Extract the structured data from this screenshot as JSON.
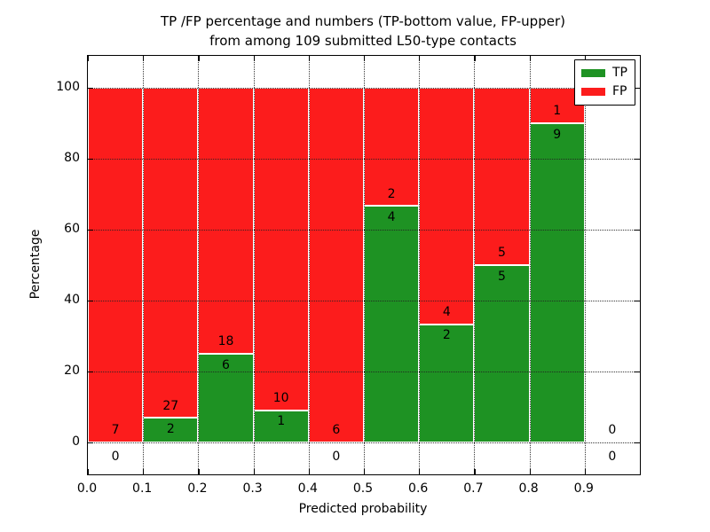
{
  "title": {
    "line1": "TP /FP percentage and numbers (TP-bottom value, FP-upper)",
    "line2": "from among 109 submitted L50-type contacts"
  },
  "axes": {
    "xlabel": "Predicted probability",
    "ylabel": "Percentage",
    "xtick_labels": [
      "0.0",
      "0.1",
      "0.2",
      "0.3",
      "0.4",
      "0.5",
      "0.6",
      "0.7",
      "0.8",
      "0.9"
    ],
    "ytick_labels": [
      "0",
      "20",
      "40",
      "60",
      "80",
      "100"
    ],
    "ytick_values": [
      0,
      20,
      40,
      60,
      80,
      100
    ],
    "grid": true
  },
  "legend": {
    "position": "upper right",
    "entries": [
      {
        "label": "TP",
        "color": "#1e9223"
      },
      {
        "label": "FP",
        "color": "#fc1c1c"
      }
    ]
  },
  "colors": {
    "tp": "#1e9223",
    "fp": "#fc1c1c",
    "grid": "#222222",
    "text": "#000000"
  },
  "chart_data": {
    "type": "bar",
    "stacked": true,
    "normalized_to": 100,
    "title": "TP /FP percentage and numbers (TP-bottom value, FP-upper) from among 109 submitted L50-type contacts",
    "xlabel": "Predicted probability",
    "ylabel": "Percentage",
    "xlim": [
      0.0,
      1.0
    ],
    "ylim": [
      -9,
      109
    ],
    "bin_width": 0.1,
    "bin_starts": [
      0.0,
      0.1,
      0.2,
      0.3,
      0.4,
      0.5,
      0.6,
      0.7,
      0.8,
      0.9
    ],
    "series": [
      {
        "name": "TP",
        "color": "#1e9223",
        "counts": [
          0,
          2,
          6,
          1,
          0,
          4,
          2,
          5,
          9,
          0
        ]
      },
      {
        "name": "FP",
        "color": "#fc1c1c",
        "counts": [
          7,
          27,
          18,
          10,
          6,
          2,
          4,
          5,
          1,
          0
        ]
      }
    ],
    "tp_percent": [
      0.0,
      6.9,
      25.0,
      9.1,
      0.0,
      66.7,
      33.3,
      50.0,
      90.0,
      null
    ],
    "total_contacts": 109
  }
}
